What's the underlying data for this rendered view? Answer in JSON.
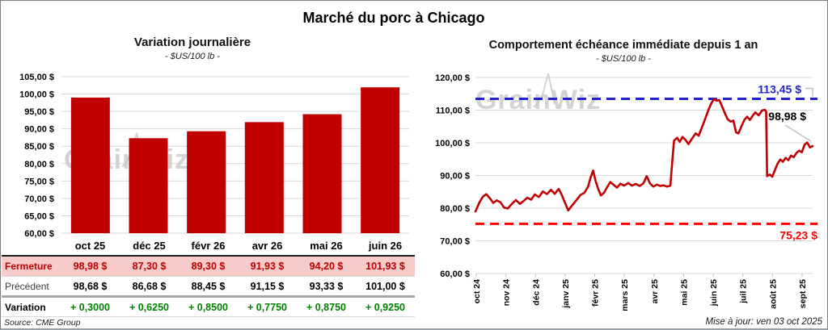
{
  "title": "Marché du porc à Chicago",
  "watermark": "GrainWiz",
  "source": "Source: CME Group",
  "updated": "Mise à jour: ven 03 oct 2025",
  "colors": {
    "series_red": "#c00000",
    "dashed_blue": "#2222cc",
    "dashed_red": "#ff0000",
    "variation_green": "#008000",
    "close_row_pink": "#f8cbcb",
    "grid": "#d9d9d9",
    "watermark_gray": "#c9c9c9",
    "callout_gray": "#bfbfbf"
  },
  "chart_data": [
    {
      "id": "bar_daily_variation",
      "type": "bar",
      "title": "Variation journalière",
      "subtitle": "- $US/100 lb -",
      "categories": [
        "oct 25",
        "déc 25",
        "févr 26",
        "avr 26",
        "mai 26",
        "juin 26"
      ],
      "values": [
        98.98,
        87.3,
        89.3,
        91.93,
        94.2,
        101.93
      ],
      "baseline": 60,
      "ylim": [
        60,
        105
      ],
      "ytick_step": 5,
      "ytick_labels": [
        "105,00 $",
        "100,00 $",
        "95,00 $",
        "90,00 $",
        "85,00 $",
        "80,00 $",
        "75,00 $",
        "70,00 $",
        "65,00 $",
        "60,00 $"
      ],
      "grid": true,
      "bar_color": "#c00000"
    },
    {
      "id": "line_front_month_1y",
      "type": "line",
      "title": "Comportement échéance immédiate depuis 1 an",
      "subtitle": "- $US/100 lb -",
      "ylim": [
        60,
        120
      ],
      "ytick_step": 10,
      "ytick_labels": [
        "120,00 $",
        "110,00 $",
        "100,00 $",
        "90,00 $",
        "80,00 $",
        "70,00 $",
        "60,00 $"
      ],
      "xtick_labels": [
        "oct 24",
        "nov 24",
        "déc 24",
        "janv 25",
        "févr 25",
        "mars 25",
        "avr 25",
        "mai 25",
        "juin 25",
        "juil 25",
        "août 25",
        "sept 25"
      ],
      "grid": true,
      "line_color": "#c00000",
      "hlines": [
        {
          "value": 113.45,
          "label": "113,45 $",
          "color": "#2222cc"
        },
        {
          "value": 75.23,
          "label": "75,23 $",
          "color": "#ff0000"
        }
      ],
      "end_annotation": {
        "label": "98,98 $",
        "value": 98.98
      },
      "points": [
        [
          0,
          79.0
        ],
        [
          1.2,
          81.8
        ],
        [
          2.2,
          83.5
        ],
        [
          3.2,
          84.3
        ],
        [
          4.3,
          83.0
        ],
        [
          5.3,
          81.6
        ],
        [
          6.3,
          82.4
        ],
        [
          7.4,
          81.8
        ],
        [
          8.5,
          80.2
        ],
        [
          9.6,
          79.9
        ],
        [
          10.8,
          81.3
        ],
        [
          12,
          82.5
        ],
        [
          13.2,
          81.3
        ],
        [
          14.4,
          82.3
        ],
        [
          15.4,
          83.2
        ],
        [
          16.5,
          82.6
        ],
        [
          17.6,
          84.2
        ],
        [
          18.8,
          83.4
        ],
        [
          20,
          85.1
        ],
        [
          21.2,
          84.3
        ],
        [
          22.4,
          85.6
        ],
        [
          23.5,
          84.4
        ],
        [
          24.7,
          85.9
        ],
        [
          25.7,
          83.8
        ],
        [
          26.5,
          81.8
        ],
        [
          27.5,
          79.3
        ],
        [
          28.7,
          80.9
        ],
        [
          29.9,
          82.4
        ],
        [
          31.1,
          84.0
        ],
        [
          32.3,
          84.7
        ],
        [
          33.4,
          86.6
        ],
        [
          34.1,
          89.2
        ],
        [
          34.9,
          91.5
        ],
        [
          35.6,
          88.4
        ],
        [
          36.4,
          85.9
        ],
        [
          37.2,
          83.9
        ],
        [
          38.1,
          84.7
        ],
        [
          39,
          86.3
        ],
        [
          40,
          88.0
        ],
        [
          41,
          87.1
        ],
        [
          42,
          86.3
        ],
        [
          43,
          87.5
        ],
        [
          44.1,
          86.9
        ],
        [
          45.3,
          87.7
        ],
        [
          46.4,
          86.9
        ],
        [
          47.6,
          87.4
        ],
        [
          48.7,
          86.8
        ],
        [
          49.8,
          87.6
        ],
        [
          50.8,
          89.8
        ],
        [
          51.8,
          87.5
        ],
        [
          52.8,
          86.6
        ],
        [
          53.8,
          87.2
        ],
        [
          54.8,
          86.8
        ],
        [
          55.8,
          87.0
        ],
        [
          56.8,
          86.6
        ],
        [
          57.8,
          86.9
        ],
        [
          58.4,
          94.5
        ],
        [
          58.9,
          100.7
        ],
        [
          59.8,
          101.5
        ],
        [
          60.6,
          100.3
        ],
        [
          61.4,
          101.8
        ],
        [
          62.3,
          100.9
        ],
        [
          63.2,
          99.6
        ],
        [
          64.2,
          101.2
        ],
        [
          65.3,
          102.9
        ],
        [
          66.2,
          102.2
        ],
        [
          67,
          104.3
        ],
        [
          68,
          107.0
        ],
        [
          69,
          109.8
        ],
        [
          70,
          112.2
        ],
        [
          70.8,
          113.4
        ],
        [
          71.5,
          112.9
        ],
        [
          72.3,
          113.1
        ],
        [
          73,
          111.5
        ],
        [
          74,
          109.0
        ],
        [
          74.8,
          107.2
        ],
        [
          75.7,
          106.5
        ],
        [
          76.5,
          106.8
        ],
        [
          77.3,
          103.2
        ],
        [
          78,
          102.9
        ],
        [
          79,
          105.3
        ],
        [
          79.8,
          107.1
        ],
        [
          80.6,
          108.0
        ],
        [
          81.4,
          107.0
        ],
        [
          82.2,
          108.3
        ],
        [
          83,
          109.3
        ],
        [
          84,
          108.4
        ],
        [
          85,
          109.9
        ],
        [
          85.8,
          110.1
        ],
        [
          86.2,
          109.6
        ],
        [
          86.5,
          89.8
        ],
        [
          87.3,
          90.3
        ],
        [
          88,
          89.6
        ],
        [
          88.8,
          91.6
        ],
        [
          89.6,
          93.6
        ],
        [
          90.4,
          94.9
        ],
        [
          91.2,
          94.2
        ],
        [
          92,
          95.4
        ],
        [
          92.8,
          94.7
        ],
        [
          93.6,
          96.1
        ],
        [
          94.4,
          95.6
        ],
        [
          95.2,
          96.9
        ],
        [
          96,
          97.6
        ],
        [
          96.8,
          97.1
        ],
        [
          97.6,
          99.4
        ],
        [
          98.4,
          100.1
        ],
        [
          99.2,
          98.6
        ],
        [
          100,
          98.98
        ]
      ]
    }
  ],
  "table": {
    "columns": [
      "oct 25",
      "déc 25",
      "févr 26",
      "avr 26",
      "mai 26",
      "juin 26"
    ],
    "rows": [
      {
        "label": "Fermeture",
        "values": [
          "98,98 $",
          "87,30 $",
          "89,30 $",
          "91,93 $",
          "94,20 $",
          "101,93 $"
        ]
      },
      {
        "label": "Précédent",
        "values": [
          "98,68 $",
          "86,68 $",
          "88,45 $",
          "91,15 $",
          "93,33 $",
          "101,00 $"
        ]
      },
      {
        "label": "Variation",
        "values": [
          "+ 0,3000",
          "+ 0,6250",
          "+ 0,8500",
          "+ 0,7750",
          "+ 0,8750",
          "+ 0,9250"
        ]
      }
    ]
  }
}
